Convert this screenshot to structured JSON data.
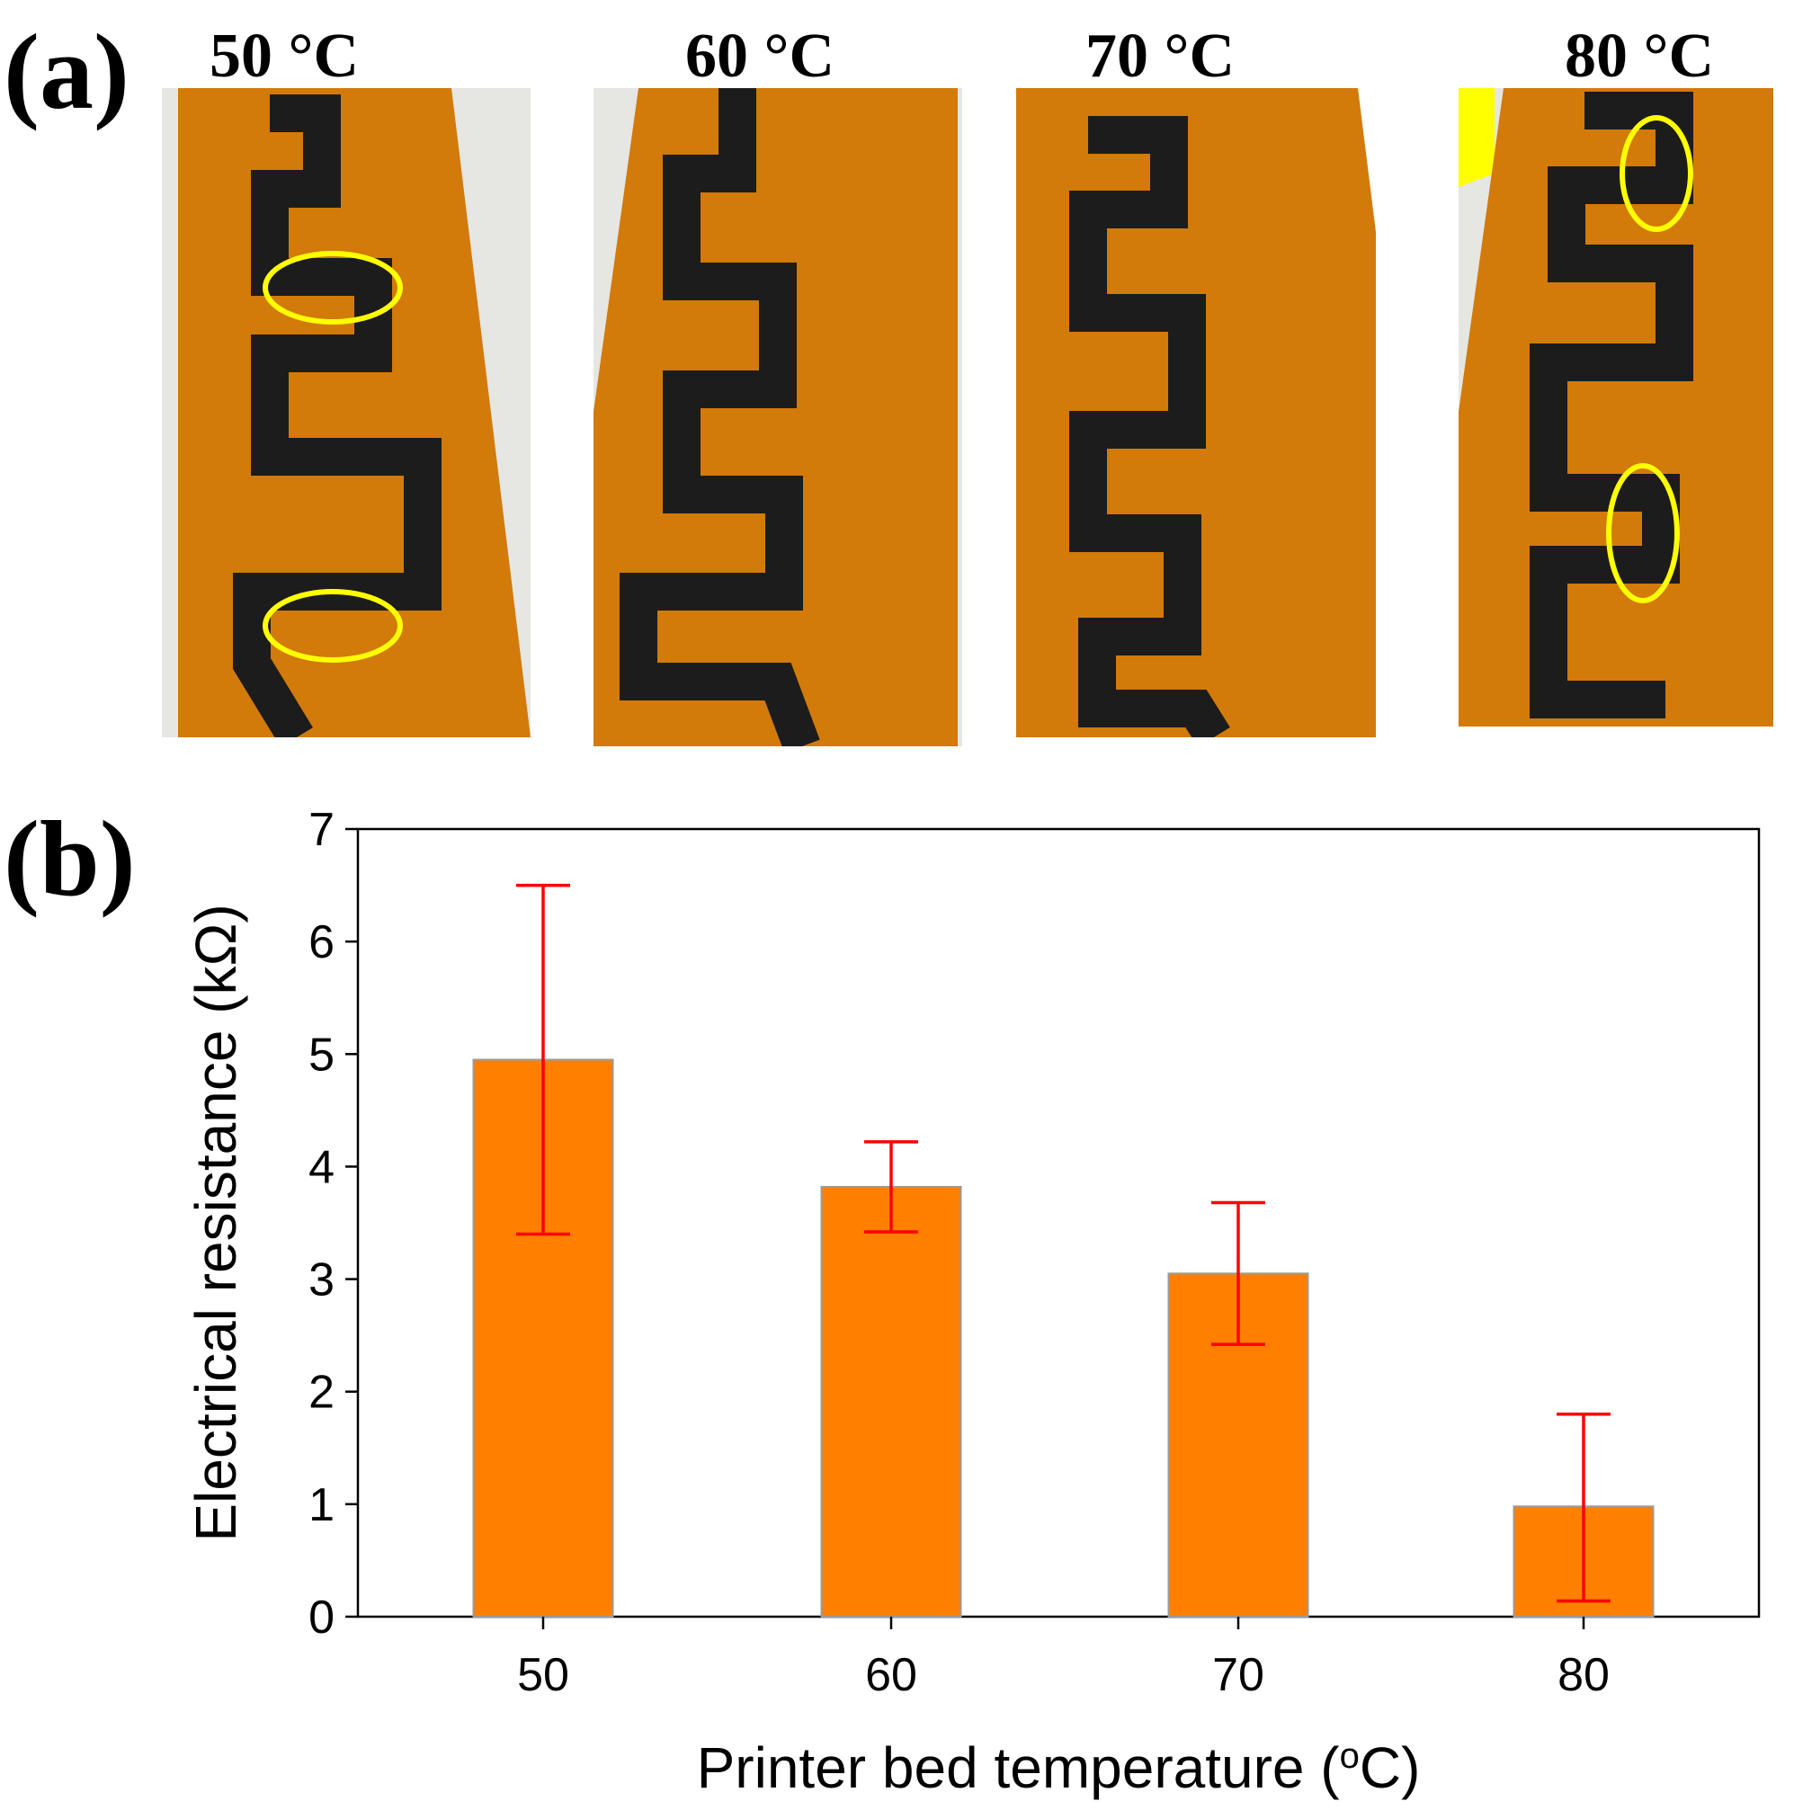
{
  "panels": {
    "a": "(a)",
    "b": "(b)"
  },
  "photo_labels": [
    "50 °C",
    "60 °C",
    "70 °C",
    "80 °C"
  ],
  "colors": {
    "bar": "#ff8000",
    "bar_edge": "#9a9a9a",
    "error": "#ff0000",
    "tape": "#d27a0a",
    "tape_dark": "#b8650a",
    "trace": "#1c1c1c",
    "defect": "#8a8f96",
    "highlight": "#ffff00",
    "background_paper": "#e6e6e3"
  },
  "chart_data": {
    "type": "bar",
    "categories": [
      "50",
      "60",
      "70",
      "80"
    ],
    "values": [
      4.95,
      3.82,
      3.05,
      0.98
    ],
    "error_low": [
      3.4,
      3.42,
      2.42,
      0.14
    ],
    "error_high": [
      6.5,
      4.22,
      3.68,
      1.8
    ],
    "xlabel": "Printer bed temperature (°C)",
    "xlabel_main": "Printer bed temperature (",
    "xlabel_sup": "o",
    "xlabel_end": "C)",
    "ylabel": "Electrical resistance (kΩ)",
    "ylim": [
      0,
      7
    ],
    "yticks": [
      "0",
      "1",
      "2",
      "3",
      "4",
      "5",
      "6",
      "7"
    ],
    "grid": false
  }
}
